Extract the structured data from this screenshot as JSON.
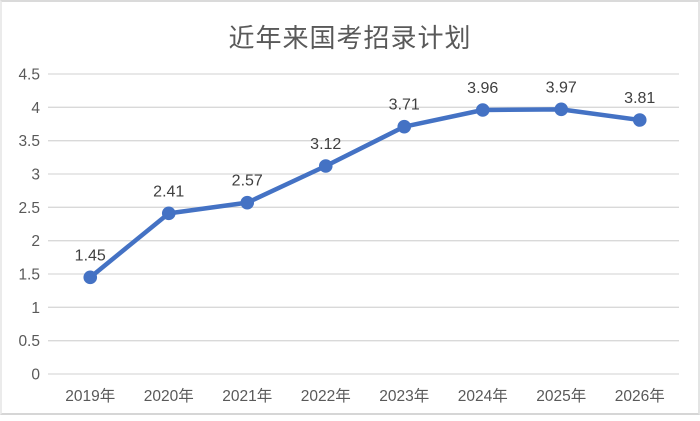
{
  "chart_data": {
    "type": "line",
    "title": "近年来国考招录计划",
    "categories": [
      "2019年",
      "2020年",
      "2021年",
      "2022年",
      "2023年",
      "2024年",
      "2025年",
      "2026年"
    ],
    "values": [
      1.45,
      2.41,
      2.57,
      3.12,
      3.71,
      3.96,
      3.97,
      3.81
    ],
    "data_labels": [
      "1.45",
      "2.41",
      "2.57",
      "3.12",
      "3.71",
      "3.96",
      "3.97",
      "3.81"
    ],
    "y_tick_labels": [
      "0",
      "0.5",
      "1",
      "1.5",
      "2",
      "2.5",
      "3",
      "3.5",
      "4",
      "4.5"
    ],
    "y_ticks": [
      0,
      0.5,
      1,
      1.5,
      2,
      2.5,
      3,
      3.5,
      4,
      4.5
    ],
    "xlabel": "",
    "ylabel": "",
    "ylim": [
      0,
      4.5
    ],
    "grid": "horizontal",
    "legend": "none",
    "marker": "circle",
    "colors": {
      "line": "#4472C4",
      "marker": "#4472C4",
      "gridline": "#D9D9D9",
      "axis_text": "#595959",
      "data_label": "#3f3f3f",
      "title_text": "#595959"
    }
  }
}
